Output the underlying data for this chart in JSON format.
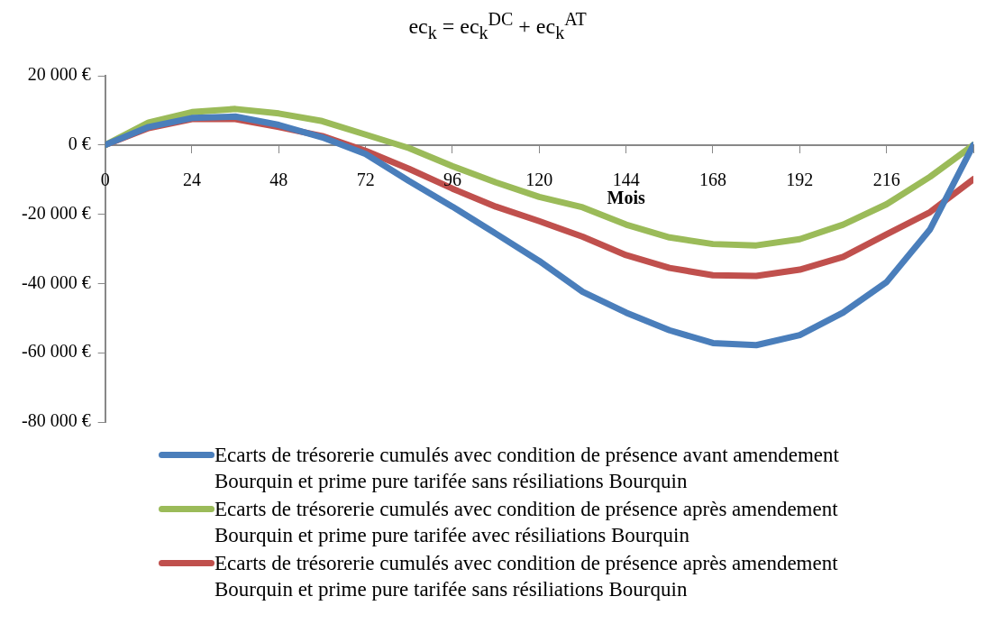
{
  "chart_data": {
    "type": "line",
    "title": "ec$_{k}$ = ec$_{k}$$^{DC}$ + ec$_{k}$$^{AT}$",
    "xlabel": "Mois",
    "x": [
      0,
      12,
      24,
      36,
      48,
      60,
      72,
      84,
      96,
      108,
      120,
      132,
      144,
      156,
      168,
      180,
      192,
      204,
      216,
      228,
      240
    ],
    "series": [
      {
        "name": "Ecarts de trésorerie cumulés avec condition de présence avant amendement Bourquin et prime pure tarifée sans résiliations Bourquin",
        "color": "#4a7ebb",
        "values": [
          0,
          5200,
          7800,
          8200,
          5800,
          2200,
          -2600,
          -10400,
          -17800,
          -25600,
          -33500,
          -42400,
          -48400,
          -53500,
          -57200,
          -57800,
          -54900,
          -48400,
          -39600,
          -24400,
          0
        ]
      },
      {
        "name": "Ecarts de trésorerie cumulés avec condition de présence après amendement Bourquin et prime pure tarifée avec résiliations Bourquin",
        "color": "#9bbb59",
        "values": [
          0,
          6500,
          9500,
          10400,
          9100,
          6900,
          3000,
          -900,
          -6100,
          -10800,
          -15000,
          -18000,
          -23000,
          -26700,
          -28600,
          -29000,
          -27200,
          -23000,
          -17100,
          -9200,
          0
        ]
      },
      {
        "name": "Ecarts de trésorerie cumulés avec condition de présence après amendement Bourquin et prime pure tarifée sans résiliations Bourquin",
        "color": "#c0504d",
        "values": [
          0,
          4900,
          7500,
          7500,
          5200,
          2600,
          -1700,
          -6900,
          -12600,
          -17800,
          -22000,
          -26500,
          -31800,
          -35500,
          -37600,
          -37800,
          -36000,
          -32300,
          -25800,
          -19400,
          -9900
        ]
      }
    ],
    "xlim": [
      0,
      240
    ],
    "xticks": [
      0,
      24,
      48,
      72,
      96,
      120,
      144,
      168,
      192,
      216,
      {
        "value": 240,
        "label": null
      }
    ],
    "ylim": [
      -80000,
      20000
    ],
    "yticks": [
      {
        "value": -80000,
        "label": "-80 000 €"
      },
      {
        "value": -60000,
        "label": "-60 000 €"
      },
      {
        "value": -40000,
        "label": "-40 000 €"
      },
      {
        "value": -20000,
        "label": "-20 000 €"
      },
      {
        "value": 0,
        "label": "0 €"
      },
      {
        "value": 20000,
        "label": "20 000 €"
      }
    ],
    "grid": false,
    "legend": "bottom",
    "marker": "none",
    "line_style": "solid"
  }
}
